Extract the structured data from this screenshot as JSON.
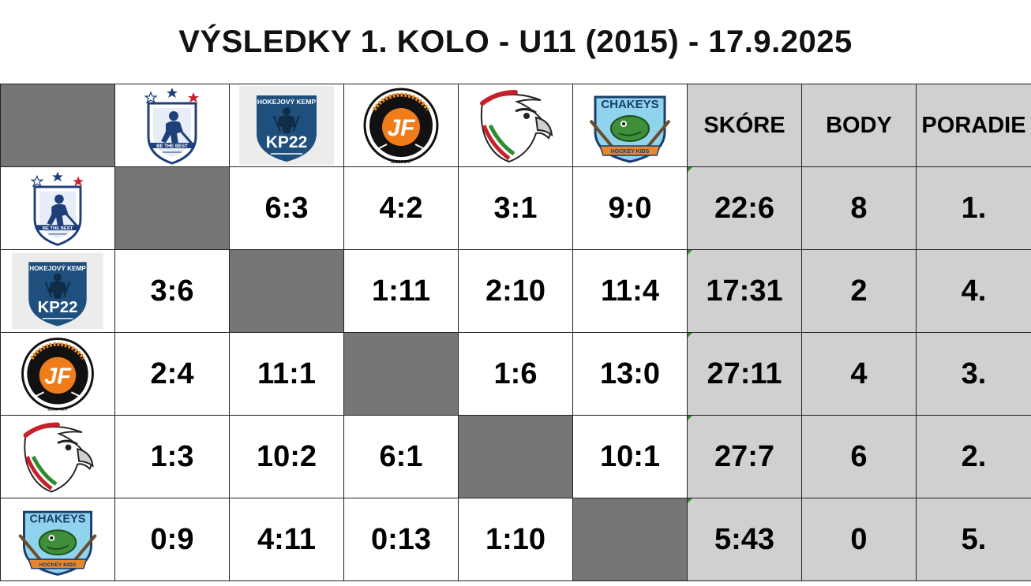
{
  "title": "VÝSLEDKY 1. KOLO - U11 (2015) - 17.9.2025",
  "colors": {
    "diagonal": "#767676",
    "stats_bg": "#d0d0d0",
    "border": "#222222"
  },
  "headers": {
    "score": "SKÓRE",
    "points": "BODY",
    "rank": "PORADIE"
  },
  "logos": {
    "team1": {
      "icon": "be-the-best-logo",
      "text": "BE THE BEST"
    },
    "team2": {
      "icon": "kp22-logo",
      "text_top": "HOKEJOVÝ KEMP",
      "text_main": "KP22"
    },
    "team3": {
      "icon": "jf-sportsteam-logo",
      "text_main": "JF",
      "text_bottom": "JÉGSPORT"
    },
    "team4": {
      "icon": "eagle-logo"
    },
    "team5": {
      "icon": "chakeys-logo",
      "text_top": "CHAKEYS",
      "text_bottom": "HOCKEY KIDS"
    }
  },
  "rows": [
    {
      "results": [
        "",
        "6:3",
        "4:2",
        "3:1",
        "9:0"
      ],
      "score": "22:6",
      "points": "8",
      "rank": "1."
    },
    {
      "results": [
        "3:6",
        "",
        "1:11",
        "2:10",
        "11:4"
      ],
      "score": "17:31",
      "points": "2",
      "rank": "4."
    },
    {
      "results": [
        "2:4",
        "11:1",
        "",
        "1:6",
        "13:0"
      ],
      "score": "27:11",
      "points": "4",
      "rank": "3."
    },
    {
      "results": [
        "1:3",
        "10:2",
        "6:1",
        "",
        "10:1"
      ],
      "score": "27:7",
      "points": "6",
      "rank": "2."
    },
    {
      "results": [
        "0:9",
        "4:11",
        "0:13",
        "1:10",
        ""
      ],
      "score": "5:43",
      "points": "0",
      "rank": "5."
    }
  ]
}
